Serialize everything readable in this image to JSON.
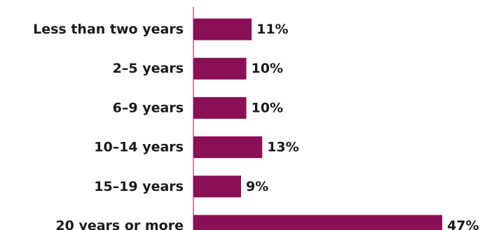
{
  "chart_data": {
    "type": "bar",
    "orientation": "horizontal",
    "categories": [
      "Less than two years",
      "2–5 years",
      "6–9 years",
      "10–14 years",
      "15–19 years",
      "20 years or more"
    ],
    "values": [
      11,
      10,
      10,
      13,
      9,
      47
    ],
    "value_labels": [
      "11%",
      "10%",
      "10%",
      "13%",
      "9%",
      "47%"
    ],
    "unit": "%",
    "title": "",
    "xlabel": "",
    "ylabel": "",
    "xlim": [
      0,
      50
    ],
    "grid": false,
    "legend": "none",
    "bar_color": "#8a0f55",
    "axis_color": "#8a0f55"
  }
}
